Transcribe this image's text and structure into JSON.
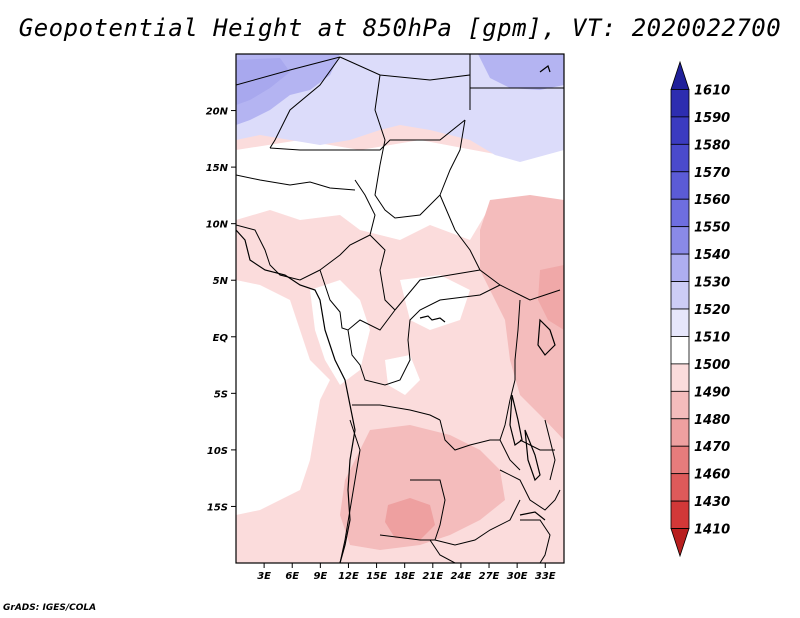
{
  "title": "Geopotential Height at 850hPa [gpm], VT: 2020022700",
  "footer": "GrADS: IGES/COLA",
  "map": {
    "variable": "Geopotential Height",
    "level": "850hPa",
    "units": "gpm",
    "valid_time": "2020022700",
    "lon_range": [
      0,
      35
    ],
    "lat_range": [
      -20,
      25
    ],
    "lat_ticks": [
      {
        "value": 20,
        "label": "20N"
      },
      {
        "value": 15,
        "label": "15N"
      },
      {
        "value": 10,
        "label": "10N"
      },
      {
        "value": 5,
        "label": "5N"
      },
      {
        "value": 0,
        "label": "EQ"
      },
      {
        "value": -5,
        "label": "5S"
      },
      {
        "value": -10,
        "label": "10S"
      },
      {
        "value": -15,
        "label": "15S"
      }
    ],
    "lon_ticks": [
      {
        "value": 3,
        "label": "3E"
      },
      {
        "value": 6,
        "label": "6E"
      },
      {
        "value": 9,
        "label": "9E"
      },
      {
        "value": 12,
        "label": "12E"
      },
      {
        "value": 15,
        "label": "15E"
      },
      {
        "value": 18,
        "label": "18E"
      },
      {
        "value": 21,
        "label": "21E"
      },
      {
        "value": 24,
        "label": "24E"
      },
      {
        "value": 27,
        "label": "27E"
      },
      {
        "value": 30,
        "label": "30E"
      },
      {
        "value": 33,
        "label": "33E"
      }
    ]
  },
  "colorbar": {
    "levels": [
      "1610",
      "1590",
      "1580",
      "1570",
      "1560",
      "1550",
      "1540",
      "1530",
      "1520",
      "1510",
      "1500",
      "1490",
      "1480",
      "1470",
      "1460",
      "1430",
      "1410"
    ],
    "colors": [
      "#20209a",
      "#2d2db0",
      "#3b3bc0",
      "#4a4acc",
      "#5b5bd6",
      "#6e6ee0",
      "#8a8ae8",
      "#aeaef0",
      "#cdcdf6",
      "#e6e6fb",
      "#ffffff",
      "#fbdcdc",
      "#f4bcbc",
      "#eea0a0",
      "#e67c7c",
      "#de5a5a",
      "#d23838",
      "#b81f1f"
    ]
  }
}
